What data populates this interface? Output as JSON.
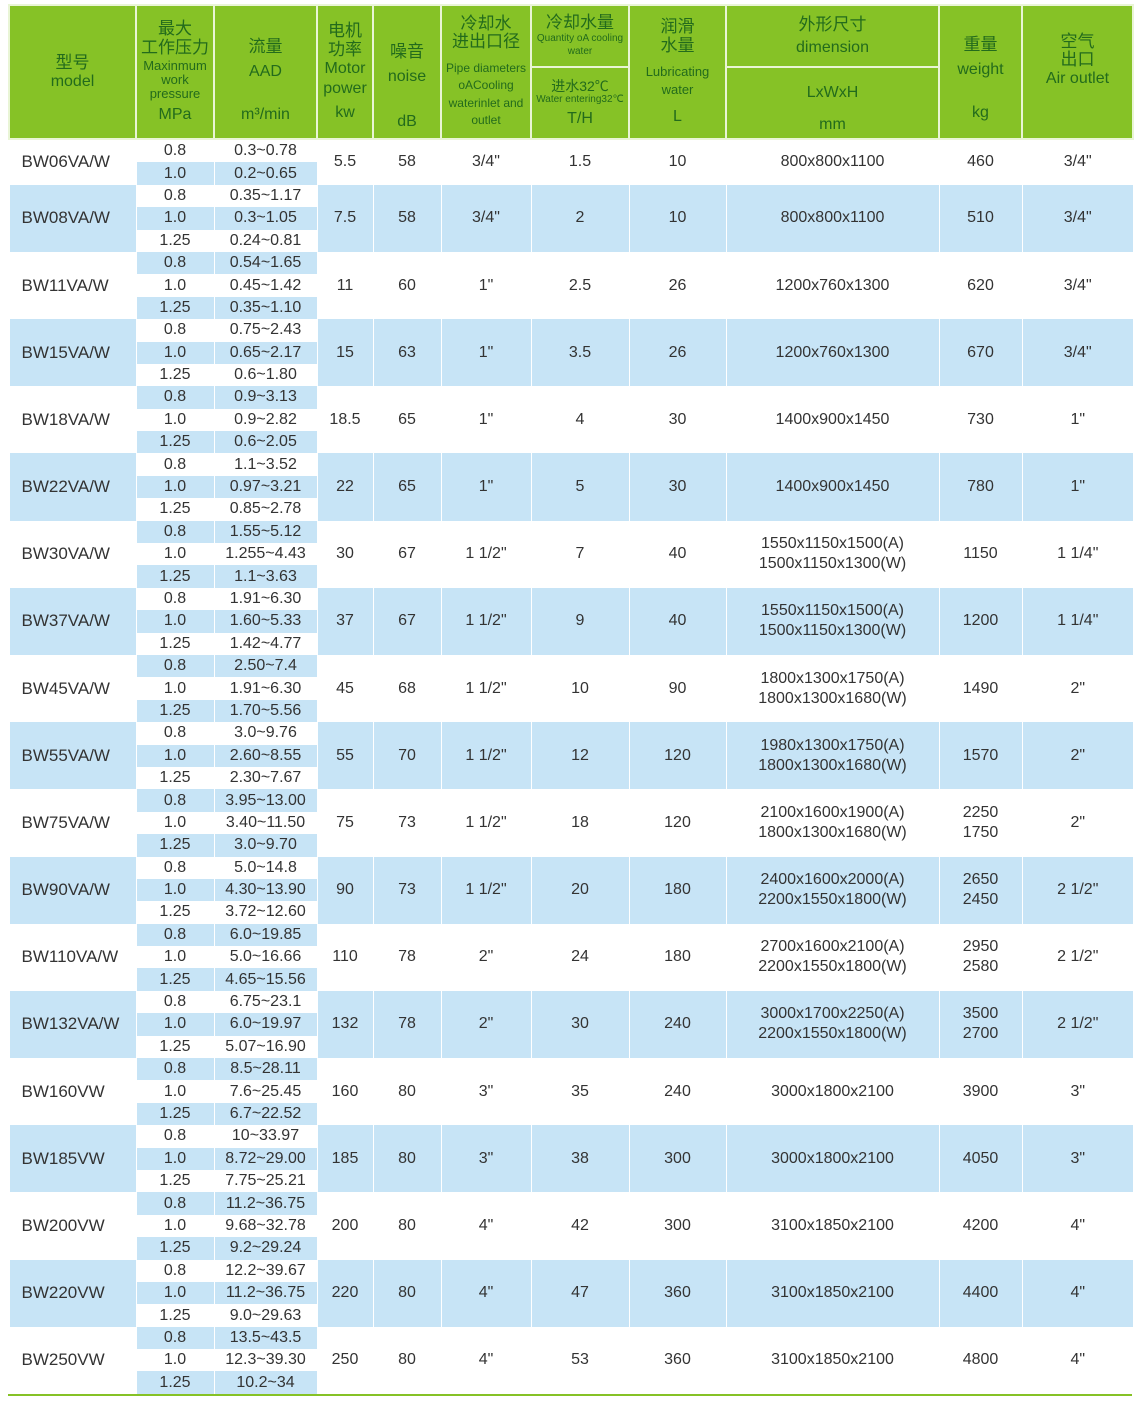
{
  "header": {
    "model": {
      "zh": "型号",
      "en": "model"
    },
    "pressure": {
      "zh1": "最大",
      "zh2": "工作压力",
      "en": "Maxinmum work pressure",
      "unit": "MPa"
    },
    "flow": {
      "zh": "流量",
      "en": "AAD",
      "unit": "m³/min"
    },
    "power": {
      "zh1": "电机",
      "zh2": "功率",
      "en1": "Motor",
      "en2": "power",
      "unit": "kw"
    },
    "noise": {
      "zh": "噪音",
      "en": "noise",
      "unit": "dB"
    },
    "pipe": {
      "zh1": "冷却水",
      "zh2": "进出口径",
      "en": "Pipe diameters oACooling waterinlet and outlet"
    },
    "cooling": {
      "zh": "冷却水量",
      "en": "Quantity oA cooling water",
      "zh_sub": "进水32℃",
      "en_sub": "Water entering32℃",
      "unit": "T/H"
    },
    "lub": {
      "zh1": "润滑",
      "zh2": "水量",
      "en": "Lubricating water",
      "unit": "L"
    },
    "dim": {
      "zh": "外形尺寸",
      "en": "dimension",
      "sub": "LxWxH",
      "unit": "mm"
    },
    "weight": {
      "zh": "重量",
      "en": "weight",
      "unit": "kg"
    },
    "air": {
      "zh1": "空气",
      "zh2": "出口",
      "en": "Air outlet"
    }
  },
  "colors": {
    "header_bg": "#86c226",
    "header_text": "#236b1c",
    "row_blue": "#c7e4f6"
  },
  "rows": [
    {
      "model": "BW06VA/W",
      "pressures": [
        "0.8",
        "1.0"
      ],
      "flows": [
        "0.3~0.78",
        "0.2~0.65"
      ],
      "power": "5.5",
      "noise": "58",
      "pipe": "3/4\"",
      "cooling": "1.5",
      "lub": "10",
      "dim": [
        "800x800x1100"
      ],
      "weight": [
        "460"
      ],
      "air": "3/4\""
    },
    {
      "model": "BW08VA/W",
      "pressures": [
        "0.8",
        "1.0",
        "1.25"
      ],
      "flows": [
        "0.35~1.17",
        "0.3~1.05",
        "0.24~0.81"
      ],
      "power": "7.5",
      "noise": "58",
      "pipe": "3/4\"",
      "cooling": "2",
      "lub": "10",
      "dim": [
        "800x800x1100"
      ],
      "weight": [
        "510"
      ],
      "air": "3/4\""
    },
    {
      "model": "BW11VA/W",
      "pressures": [
        "0.8",
        "1.0",
        "1.25"
      ],
      "flows": [
        "0.54~1.65",
        "0.45~1.42",
        "0.35~1.10"
      ],
      "power": "11",
      "noise": "60",
      "pipe": "1\"",
      "cooling": "2.5",
      "lub": "26",
      "dim": [
        "1200x760x1300"
      ],
      "weight": [
        "620"
      ],
      "air": "3/4\""
    },
    {
      "model": "BW15VA/W",
      "pressures": [
        "0.8",
        "1.0",
        "1.25"
      ],
      "flows": [
        "0.75~2.43",
        "0.65~2.17",
        "0.6~1.80"
      ],
      "power": "15",
      "noise": "63",
      "pipe": "1\"",
      "cooling": "3.5",
      "lub": "26",
      "dim": [
        "1200x760x1300"
      ],
      "weight": [
        "670"
      ],
      "air": "3/4\""
    },
    {
      "model": "BW18VA/W",
      "pressures": [
        "0.8",
        "1.0",
        "1.25"
      ],
      "flows": [
        "0.9~3.13",
        "0.9~2.82",
        "0.6~2.05"
      ],
      "power": "18.5",
      "noise": "65",
      "pipe": "1\"",
      "cooling": "4",
      "lub": "30",
      "dim": [
        "1400x900x1450"
      ],
      "weight": [
        "730"
      ],
      "air": "1\""
    },
    {
      "model": "BW22VA/W",
      "pressures": [
        "0.8",
        "1.0",
        "1.25"
      ],
      "flows": [
        "1.1~3.52",
        "0.97~3.21",
        "0.85~2.78"
      ],
      "power": "22",
      "noise": "65",
      "pipe": "1\"",
      "cooling": "5",
      "lub": "30",
      "dim": [
        "1400x900x1450"
      ],
      "weight": [
        "780"
      ],
      "air": "1\""
    },
    {
      "model": "BW30VA/W",
      "pressures": [
        "0.8",
        "1.0",
        "1.25"
      ],
      "flows": [
        "1.55~5.12",
        "1.255~4.43",
        "1.1~3.63"
      ],
      "power": "30",
      "noise": "67",
      "pipe": "1 1/2\"",
      "cooling": "7",
      "lub": "40",
      "dim": [
        "1550x1150x1500(A)",
        "1500x1150x1300(W)"
      ],
      "weight": [
        "1150"
      ],
      "air": "1 1/4\""
    },
    {
      "model": "BW37VA/W",
      "pressures": [
        "0.8",
        "1.0",
        "1.25"
      ],
      "flows": [
        "1.91~6.30",
        "1.60~5.33",
        "1.42~4.77"
      ],
      "power": "37",
      "noise": "67",
      "pipe": "1 1/2\"",
      "cooling": "9",
      "lub": "40",
      "dim": [
        "1550x1150x1500(A)",
        "1500x1150x1300(W)"
      ],
      "weight": [
        "1200"
      ],
      "air": "1 1/4\""
    },
    {
      "model": "BW45VA/W",
      "pressures": [
        "0.8",
        "1.0",
        "1.25"
      ],
      "flows": [
        "2.50~7.4",
        "1.91~6.30",
        "1.70~5.56"
      ],
      "power": "45",
      "noise": "68",
      "pipe": "1 1/2\"",
      "cooling": "10",
      "lub": "90",
      "dim": [
        "1800x1300x1750(A)",
        "1800x1300x1680(W)"
      ],
      "weight": [
        "1490"
      ],
      "air": "2\""
    },
    {
      "model": "BW55VA/W",
      "pressures": [
        "0.8",
        "1.0",
        "1.25"
      ],
      "flows": [
        "3.0~9.76",
        "2.60~8.55",
        "2.30~7.67"
      ],
      "power": "55",
      "noise": "70",
      "pipe": "1 1/2\"",
      "cooling": "12",
      "lub": "120",
      "dim": [
        "1980x1300x1750(A)",
        "1800x1300x1680(W)"
      ],
      "weight": [
        "1570"
      ],
      "air": "2\""
    },
    {
      "model": "BW75VA/W",
      "pressures": [
        "0.8",
        "1.0",
        "1.25"
      ],
      "flows": [
        "3.95~13.00",
        "3.40~11.50",
        "3.0~9.70"
      ],
      "power": "75",
      "noise": "73",
      "pipe": "1 1/2\"",
      "cooling": "18",
      "lub": "120",
      "dim": [
        "2100x1600x1900(A)",
        "1800x1300x1680(W)"
      ],
      "weight": [
        "2250",
        "1750"
      ],
      "air": "2\""
    },
    {
      "model": "BW90VA/W",
      "pressures": [
        "0.8",
        "1.0",
        "1.25"
      ],
      "flows": [
        "5.0~14.8",
        "4.30~13.90",
        "3.72~12.60"
      ],
      "power": "90",
      "noise": "73",
      "pipe": "1 1/2\"",
      "cooling": "20",
      "lub": "180",
      "dim": [
        "2400x1600x2000(A)",
        "2200x1550x1800(W)"
      ],
      "weight": [
        "2650",
        "2450"
      ],
      "air": "2 1/2\""
    },
    {
      "model": "BW110VA/W",
      "pressures": [
        "0.8",
        "1.0",
        "1.25"
      ],
      "flows": [
        "6.0~19.85",
        "5.0~16.66",
        "4.65~15.56"
      ],
      "power": "110",
      "noise": "78",
      "pipe": "2\"",
      "cooling": "24",
      "lub": "180",
      "dim": [
        "2700x1600x2100(A)",
        "2200x1550x1800(W)"
      ],
      "weight": [
        "2950",
        "2580"
      ],
      "air": "2 1/2\""
    },
    {
      "model": "BW132VA/W",
      "pressures": [
        "0.8",
        "1.0",
        "1.25"
      ],
      "flows": [
        "6.75~23.1",
        "6.0~19.97",
        "5.07~16.90"
      ],
      "power": "132",
      "noise": "78",
      "pipe": "2\"",
      "cooling": "30",
      "lub": "240",
      "dim": [
        "3000x1700x2250(A)",
        "2200x1550x1800(W)"
      ],
      "weight": [
        "3500",
        "2700"
      ],
      "air": "2 1/2\""
    },
    {
      "model": "BW160VW",
      "pressures": [
        "0.8",
        "1.0",
        "1.25"
      ],
      "flows": [
        "8.5~28.11",
        "7.6~25.45",
        "6.7~22.52"
      ],
      "power": "160",
      "noise": "80",
      "pipe": "3\"",
      "cooling": "35",
      "lub": "240",
      "dim": [
        "3000x1800x2100"
      ],
      "weight": [
        "3900"
      ],
      "air": "3\""
    },
    {
      "model": "BW185VW",
      "pressures": [
        "0.8",
        "1.0",
        "1.25"
      ],
      "flows": [
        "10~33.97",
        "8.72~29.00",
        "7.75~25.21"
      ],
      "power": "185",
      "noise": "80",
      "pipe": "3\"",
      "cooling": "38",
      "lub": "300",
      "dim": [
        "3000x1800x2100"
      ],
      "weight": [
        "4050"
      ],
      "air": "3\""
    },
    {
      "model": "BW200VW",
      "pressures": [
        "0.8",
        "1.0",
        "1.25"
      ],
      "flows": [
        "11.2~36.75",
        "9.68~32.78",
        "9.2~29.24"
      ],
      "power": "200",
      "noise": "80",
      "pipe": "4\"",
      "cooling": "42",
      "lub": "300",
      "dim": [
        "3100x1850x2100"
      ],
      "weight": [
        "4200"
      ],
      "air": "4\""
    },
    {
      "model": "BW220VW",
      "pressures": [
        "0.8",
        "1.0",
        "1.25"
      ],
      "flows": [
        "12.2~39.67",
        "11.2~36.75",
        "9.0~29.63"
      ],
      "power": "220",
      "noise": "80",
      "pipe": "4\"",
      "cooling": "47",
      "lub": "360",
      "dim": [
        "3100x1850x2100"
      ],
      "weight": [
        "4400"
      ],
      "air": "4\""
    },
    {
      "model": "BW250VW",
      "pressures": [
        "0.8",
        "1.0",
        "1.25"
      ],
      "flows": [
        "13.5~43.5",
        "12.3~39.30",
        "10.2~34"
      ],
      "power": "250",
      "noise": "80",
      "pipe": "4\"",
      "cooling": "53",
      "lub": "360",
      "dim": [
        "3100x1850x2100"
      ],
      "weight": [
        "4800"
      ],
      "air": "4\""
    }
  ]
}
